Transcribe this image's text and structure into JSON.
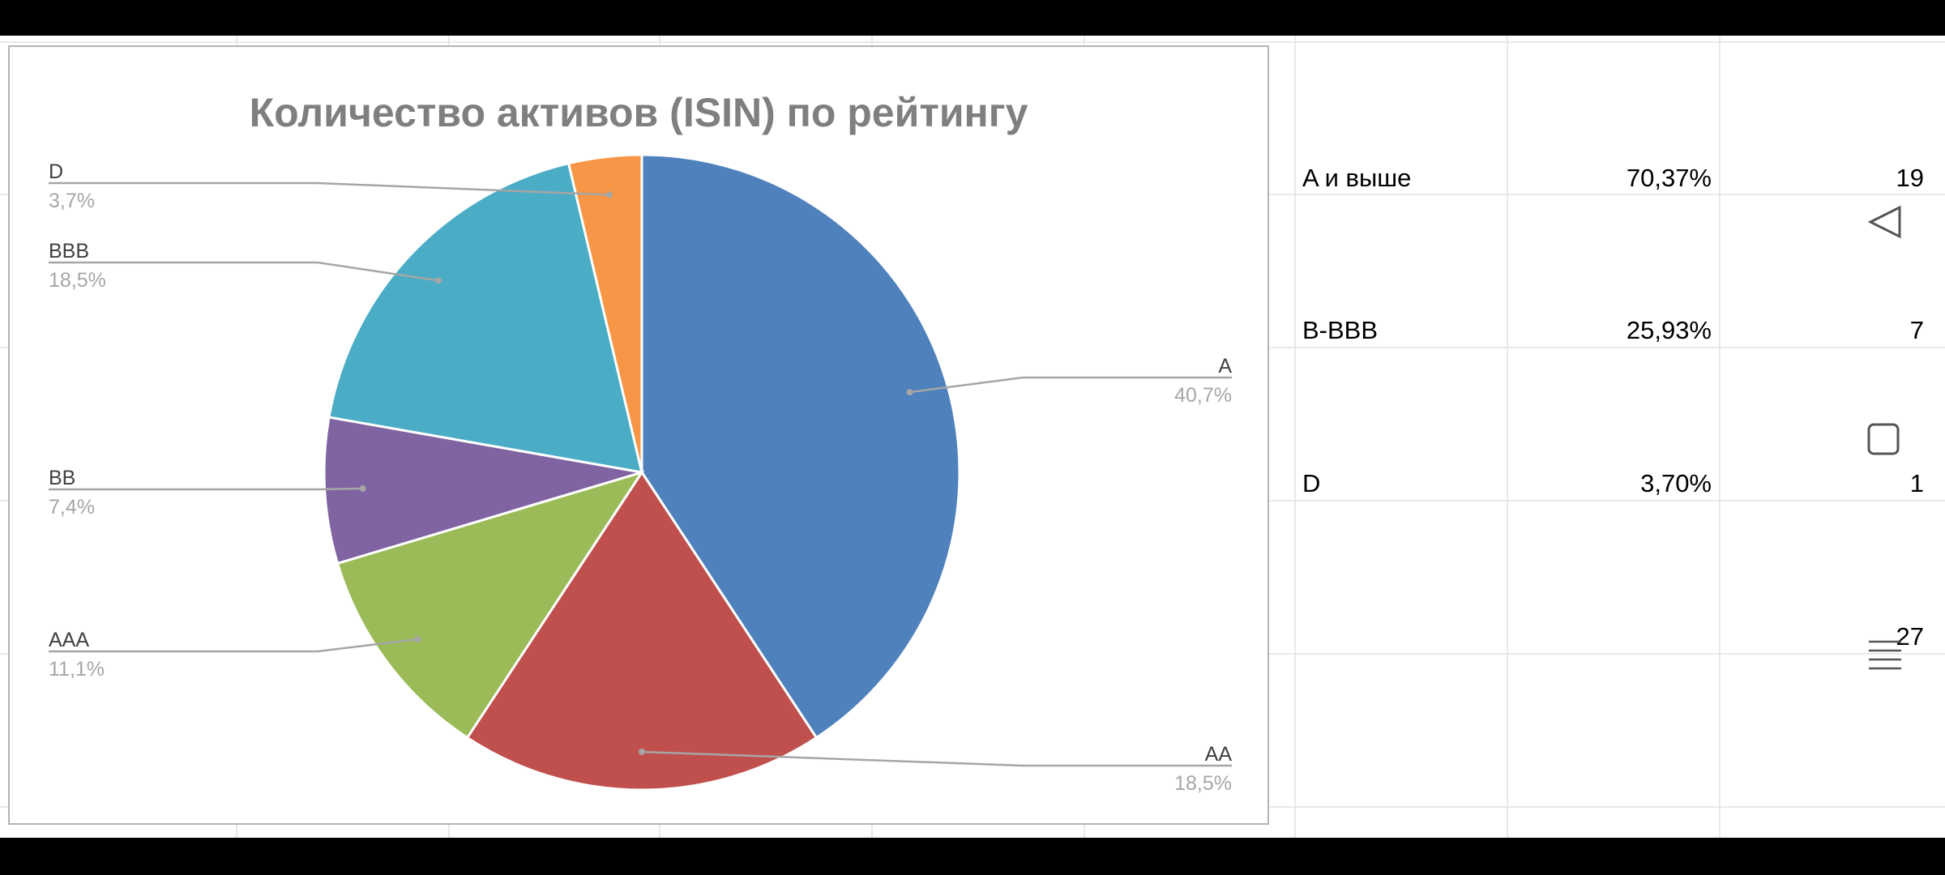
{
  "chart_data": {
    "type": "pie",
    "title": "Количество активов (ISIN) по рейтингу",
    "categories": [
      "A",
      "AA",
      "AAA",
      "BB",
      "BBB",
      "D"
    ],
    "values": [
      11,
      5,
      3,
      2,
      5,
      1
    ],
    "percent_labels": [
      "40,7%",
      "18,5%",
      "11,1%",
      "7,4%",
      "18,5%",
      "3,7%"
    ],
    "colors": [
      "#4f81bd",
      "#c0504d",
      "#9bbb59",
      "#8064a2",
      "#4bacc6",
      "#f79646"
    ],
    "start_angle_deg": 0,
    "direction": "clockwise",
    "label_color": "#404040",
    "percent_color": "#a6a6a6",
    "leader_color": "#a6a6a6"
  },
  "table": {
    "rows": [
      {
        "label": "A и выше",
        "percent": "70,37%",
        "count": "19"
      },
      {
        "label": "B-BBB",
        "percent": "25,93%",
        "count": "7"
      },
      {
        "label": "D",
        "percent": "3,70%",
        "count": "1"
      }
    ],
    "total": "27"
  },
  "nav": {
    "icons": [
      "back-icon",
      "home-icon",
      "recents-icon"
    ]
  }
}
